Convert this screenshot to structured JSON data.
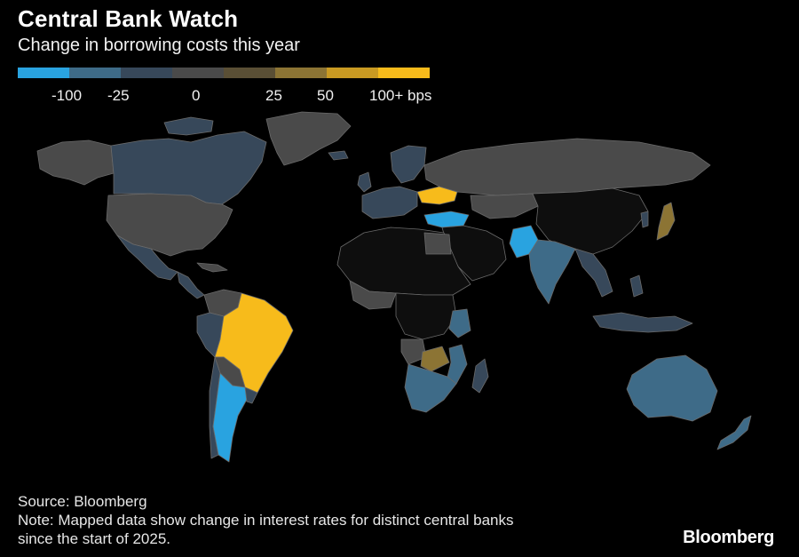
{
  "header": {
    "title": "Central Bank Watch",
    "subtitle": "Change in borrowing costs this year"
  },
  "legend": {
    "swatches": [
      "#29a3e0",
      "#3e6b88",
      "#37485a",
      "#4a4a4a",
      "#5a4f35",
      "#8c7434",
      "#c99a22",
      "#f7bb1b"
    ],
    "labels": [
      "-100",
      "-25",
      "0",
      "25",
      "50",
      "100+ bps"
    ]
  },
  "colors": {
    "background": "#000000",
    "cut_strong": "#29a3e0",
    "cut": "#3e6b88",
    "cut_slight": "#37485a",
    "no_change": "#4a4a4a",
    "hike_small": "#8c7434",
    "hike_large": "#f7bb1b",
    "no_data": "#0e0e0e",
    "border": "#6a6a6a"
  },
  "footer": {
    "source": "Source: Bloomberg",
    "note_line1": "Note: Mapped data show change in interest rates for distinct central banks",
    "note_line2": "since the start of 2025."
  },
  "brand": {
    "logo_text": "Bloomberg"
  }
}
